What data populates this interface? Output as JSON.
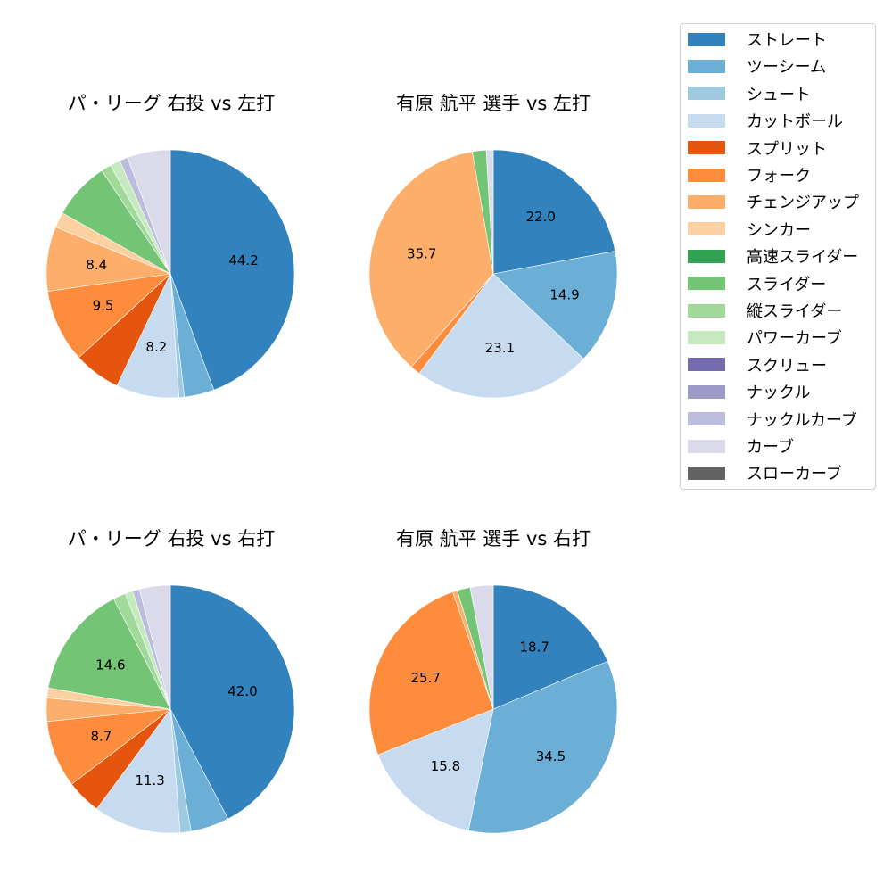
{
  "legend": {
    "items": [
      {
        "label": "ストレート",
        "color": "#3182bd"
      },
      {
        "label": "ツーシーム",
        "color": "#6baed6"
      },
      {
        "label": "シュート",
        "color": "#9ecae1"
      },
      {
        "label": "カットボール",
        "color": "#c6dbef"
      },
      {
        "label": "スプリット",
        "color": "#e6550d"
      },
      {
        "label": "フォーク",
        "color": "#fd8d3c"
      },
      {
        "label": "チェンジアップ",
        "color": "#fdae6b"
      },
      {
        "label": "シンカー",
        "color": "#fdd0a2"
      },
      {
        "label": "高速スライダー",
        "color": "#31a354"
      },
      {
        "label": "スライダー",
        "color": "#74c476"
      },
      {
        "label": "縦スライダー",
        "color": "#a1d99b"
      },
      {
        "label": "パワーカーブ",
        "color": "#c7e9c0"
      },
      {
        "label": "スクリュー",
        "color": "#756bb1"
      },
      {
        "label": "ナックル",
        "color": "#9e9ac8"
      },
      {
        "label": "ナックルカーブ",
        "color": "#bcbddc"
      },
      {
        "label": "カーブ",
        "color": "#dadaeb"
      },
      {
        "label": "スローカーブ",
        "color": "#636363"
      }
    ]
  },
  "chart_data": [
    {
      "type": "pie",
      "title": "パ・リーグ 右投 vs 左打",
      "start_angle": 90,
      "direction": "clockwise",
      "slices": [
        {
          "label": "ストレート",
          "value": 44.2,
          "show_label": true
        },
        {
          "label": "ツーシーム",
          "value": 3.9,
          "show_label": false
        },
        {
          "label": "シュート",
          "value": 0.7,
          "show_label": false
        },
        {
          "label": "カットボール",
          "value": 8.2,
          "show_label": true
        },
        {
          "label": "スプリット",
          "value": 6.1,
          "show_label": false
        },
        {
          "label": "フォーク",
          "value": 9.5,
          "show_label": true
        },
        {
          "label": "チェンジアップ",
          "value": 8.4,
          "show_label": true
        },
        {
          "label": "シンカー",
          "value": 2.0,
          "show_label": false
        },
        {
          "label": "スライダー",
          "value": 7.5,
          "show_label": false
        },
        {
          "label": "縦スライダー",
          "value": 1.3,
          "show_label": false
        },
        {
          "label": "パワーカーブ",
          "value": 1.3,
          "show_label": false
        },
        {
          "label": "ナックルカーブ",
          "value": 1.1,
          "show_label": false
        },
        {
          "label": "カーブ",
          "value": 5.6,
          "show_label": false
        }
      ]
    },
    {
      "type": "pie",
      "title": "有原 航平 選手 vs 左打",
      "start_angle": 90,
      "direction": "clockwise",
      "slices": [
        {
          "label": "ストレート",
          "value": 22.0,
          "show_label": true
        },
        {
          "label": "ツーシーム",
          "value": 14.9,
          "show_label": true
        },
        {
          "label": "カットボール",
          "value": 23.1,
          "show_label": true
        },
        {
          "label": "フォーク",
          "value": 1.3,
          "show_label": false
        },
        {
          "label": "チェンジアップ",
          "value": 35.7,
          "show_label": true
        },
        {
          "label": "スライダー",
          "value": 1.8,
          "show_label": false
        },
        {
          "label": "カーブ",
          "value": 0.9,
          "show_label": false
        }
      ]
    },
    {
      "type": "pie",
      "title": "パ・リーグ 右投 vs 右打",
      "start_angle": 90,
      "direction": "clockwise",
      "slices": [
        {
          "label": "ストレート",
          "value": 42.0,
          "show_label": true
        },
        {
          "label": "ツーシーム",
          "value": 5.0,
          "show_label": false
        },
        {
          "label": "シュート",
          "value": 1.4,
          "show_label": false
        },
        {
          "label": "カットボール",
          "value": 11.3,
          "show_label": true
        },
        {
          "label": "スプリット",
          "value": 4.5,
          "show_label": false
        },
        {
          "label": "フォーク",
          "value": 8.7,
          "show_label": true
        },
        {
          "label": "チェンジアップ",
          "value": 3.0,
          "show_label": false
        },
        {
          "label": "シンカー",
          "value": 1.3,
          "show_label": false
        },
        {
          "label": "スライダー",
          "value": 14.6,
          "show_label": true
        },
        {
          "label": "縦スライダー",
          "value": 1.6,
          "show_label": false
        },
        {
          "label": "パワーカーブ",
          "value": 1.0,
          "show_label": false
        },
        {
          "label": "ナックルカーブ",
          "value": 0.9,
          "show_label": false
        },
        {
          "label": "カーブ",
          "value": 4.0,
          "show_label": false
        }
      ]
    },
    {
      "type": "pie",
      "title": "有原 航平 選手 vs 右打",
      "start_angle": 90,
      "direction": "clockwise",
      "slices": [
        {
          "label": "ストレート",
          "value": 18.7,
          "show_label": true
        },
        {
          "label": "ツーシーム",
          "value": 34.5,
          "show_label": true
        },
        {
          "label": "カットボール",
          "value": 15.8,
          "show_label": true
        },
        {
          "label": "フォーク",
          "value": 25.7,
          "show_label": true
        },
        {
          "label": "チェンジアップ",
          "value": 0.6,
          "show_label": false
        },
        {
          "label": "スライダー",
          "value": 1.7,
          "show_label": false
        },
        {
          "label": "カーブ",
          "value": 3.0,
          "show_label": false
        }
      ]
    }
  ],
  "panels": [
    {
      "title": "パ・リーグ 右投 vs 左打"
    },
    {
      "title": "有原 航平 選手 vs 左打"
    },
    {
      "title": "パ・リーグ 右投 vs 右打"
    },
    {
      "title": "有原 航平 選手 vs 右打"
    }
  ]
}
